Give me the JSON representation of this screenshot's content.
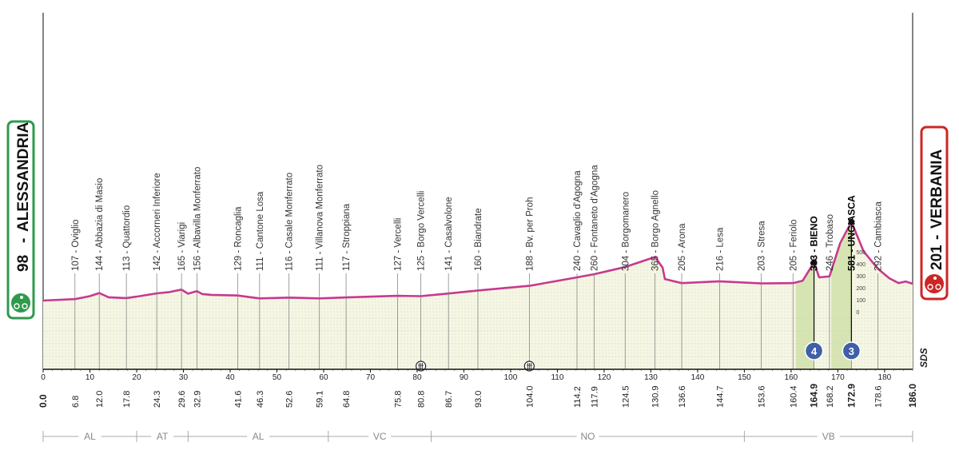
{
  "chart_data": {
    "type": "area",
    "start": {
      "label": "ALESSANDRIA",
      "altitude": "98"
    },
    "finish": {
      "label": "VERBANIA",
      "altitude": "201"
    },
    "logo_text": "SDS",
    "x_ticks": [
      0,
      10,
      20,
      30,
      40,
      50,
      60,
      70,
      80,
      90,
      100,
      110,
      120,
      130,
      140,
      150,
      160,
      170,
      180
    ],
    "xlim": [
      0,
      186
    ],
    "profile": [
      [
        0,
        98
      ],
      [
        6.8,
        107
      ],
      [
        10,
        125
      ],
      [
        12,
        144
      ],
      [
        14,
        118
      ],
      [
        17.8,
        113
      ],
      [
        20,
        122
      ],
      [
        24.3,
        142
      ],
      [
        27,
        150
      ],
      [
        29.6,
        165
      ],
      [
        31,
        140
      ],
      [
        32.9,
        156
      ],
      [
        34,
        138
      ],
      [
        36,
        133
      ],
      [
        41.6,
        129
      ],
      [
        46.3,
        111
      ],
      [
        52.6,
        116
      ],
      [
        59.1,
        111
      ],
      [
        64.8,
        117
      ],
      [
        75.8,
        127
      ],
      [
        80.8,
        125
      ],
      [
        86.7,
        141
      ],
      [
        93,
        160
      ],
      [
        104,
        188
      ],
      [
        114.2,
        240
      ],
      [
        117.9,
        260
      ],
      [
        124.5,
        304
      ],
      [
        130.9,
        365
      ],
      [
        132.5,
        300
      ],
      [
        133,
        230
      ],
      [
        136.6,
        205
      ],
      [
        144.7,
        216
      ],
      [
        153.6,
        203
      ],
      [
        160.4,
        205
      ],
      [
        162.5,
        220
      ],
      [
        164.9,
        333
      ],
      [
        166,
        240
      ],
      [
        168.2,
        246
      ],
      [
        170.5,
        450
      ],
      [
        172.9,
        581
      ],
      [
        175.5,
        400
      ],
      [
        178.6,
        292
      ],
      [
        181,
        235
      ],
      [
        183,
        205
      ],
      [
        184.5,
        215
      ],
      [
        186,
        201
      ]
    ],
    "markers": [
      {
        "km": 6.8,
        "label": "107 - Oviglio"
      },
      {
        "km": 12.0,
        "label": "144 - Abbazia di Masio"
      },
      {
        "km": 17.8,
        "label": "113 - Quattordio"
      },
      {
        "km": 24.3,
        "label": "142 - Accorneri Inferiore"
      },
      {
        "km": 29.6,
        "label": "165 - Viarigi"
      },
      {
        "km": 32.9,
        "label": "156 - Albavilla Monferrato"
      },
      {
        "km": 41.6,
        "label": "129 - Roncaglia"
      },
      {
        "km": 46.3,
        "label": "111 - Cantone Losa"
      },
      {
        "km": 52.6,
        "label": "116 - Casale Monferrato"
      },
      {
        "km": 59.1,
        "label": "111 - Villanova Monferrato"
      },
      {
        "km": 64.8,
        "label": "117 - Stroppiana"
      },
      {
        "km": 75.8,
        "label": "127 - Vercelli"
      },
      {
        "km": 80.8,
        "label": "125 - Borgo Vercelli"
      },
      {
        "km": 86.7,
        "label": "141 - Casalvolone"
      },
      {
        "km": 93.0,
        "label": "160 - Biandrate"
      },
      {
        "km": 104.0,
        "label": "188 - Bv. per Proh"
      },
      {
        "km": 114.2,
        "label": "240 - Cavaglio d'Agogna"
      },
      {
        "km": 117.9,
        "label": "260 - Fontaneto d'Agogna"
      },
      {
        "km": 124.5,
        "label": "304 - Borgomanero"
      },
      {
        "km": 130.9,
        "label": "365 - Borgo Agnello"
      },
      {
        "km": 136.6,
        "label": "205 - Arona"
      },
      {
        "km": 144.7,
        "label": "216 - Lesa"
      },
      {
        "km": 153.6,
        "label": "203 - Stresa"
      },
      {
        "km": 160.4,
        "label": "205 - Feriolo"
      },
      {
        "km": 164.9,
        "label": "333 - BIENO",
        "bold": true
      },
      {
        "km": 168.2,
        "label": "246 - Trobaso"
      },
      {
        "km": 172.9,
        "label": "581 - UNGIASCA",
        "bold": true
      },
      {
        "km": 178.6,
        "label": "292 - Cambiasca"
      }
    ],
    "km_labels": [
      "0.0",
      "6.8",
      "12.0",
      "17.8",
      "24.3",
      "29.6",
      "32.9",
      "41.6",
      "46.3",
      "52.6",
      "59.1",
      "64.8",
      "75.8",
      "80.8",
      "86.7",
      "93.0",
      "104.0",
      "114.2",
      "117.9",
      "124.5",
      "130.9",
      "136.6",
      "144.7",
      "153.6",
      "160.4",
      "164.9",
      "168.2",
      "172.9",
      "178.6",
      "186.0"
    ],
    "climbs": [
      {
        "km": 164.9,
        "category": "4",
        "start_km": 161.0
      },
      {
        "km": 172.9,
        "category": "3",
        "start_km": 168.6
      }
    ],
    "sprints": [
      80.8,
      104.0
    ],
    "climb_scale": [
      "500",
      "400",
      "300",
      "200",
      "100",
      "0"
    ],
    "provinces": [
      {
        "label": "AL",
        "from": 0,
        "to": 20
      },
      {
        "label": "AT",
        "from": 20,
        "to": 31
      },
      {
        "label": "AL",
        "from": 31,
        "to": 61
      },
      {
        "label": "VC",
        "from": 61,
        "to": 83
      },
      {
        "label": "NO",
        "from": 83,
        "to": 150
      },
      {
        "label": "VB",
        "from": 150,
        "to": 186
      }
    ],
    "colors": {
      "profile_line": "#c8388f",
      "fill": "#f5f7e4",
      "climb_fill": "#d4e3b0",
      "start": "#2e9a4b",
      "finish": "#cc2626",
      "badge": "#3f5fa8"
    }
  }
}
